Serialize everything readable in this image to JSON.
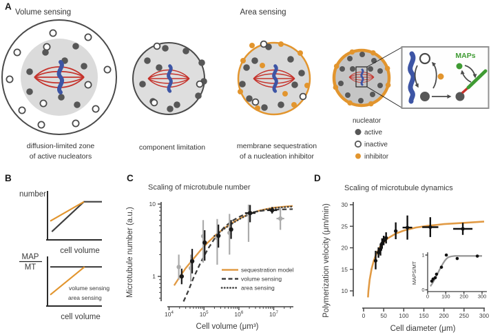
{
  "colors": {
    "orange": "#E2952E",
    "orange_curve": "#E19A44",
    "dark_gray": "#3F3F3F",
    "data_gray": "#ABABAB",
    "red_spindle": "#C5322B",
    "blue_chromosome": "#3D55A5",
    "green_maps": "#3F9B33",
    "nucleator_dot": "#575757"
  },
  "panel_a": {
    "label": "A",
    "header_volume": "Volume sensing",
    "header_area": "Area sensing",
    "caption1_line1": "diffusion-limited zone",
    "caption1_line2": "of active nucleators",
    "caption2": "component limitation",
    "caption3_line1": "membrane sequestration",
    "caption3_line2": "of a nucleation inhibitor",
    "inset_maps_label": "MAPs",
    "legend": {
      "title": "nucleator",
      "active": "active",
      "inactive": "inactive",
      "inhibitor": "inhibitor"
    }
  },
  "panel_b": {
    "label": "B"
  },
  "panel_c": {
    "label": "C"
  },
  "panel_d": {
    "label": "D"
  },
  "chart_data": [
    {
      "id": "panel-b-top-schematic",
      "type": "line",
      "xlabel": "cell volume",
      "ylabel": "number",
      "axes": "schematic, no ticks, normalized 0-1",
      "curves": [
        {
          "name": "volume sensing",
          "color": "#3F3F3F",
          "width": 2.2,
          "points": [
            [
              0.08,
              0.17
            ],
            [
              0.67,
              0.79
            ],
            [
              1.0,
              0.79
            ]
          ]
        },
        {
          "name": "area sensing",
          "color": "#E2952E",
          "width": 2.2,
          "points": [
            [
              0.05,
              0.39
            ],
            [
              0.67,
              0.79
            ]
          ]
        }
      ]
    },
    {
      "id": "panel-b-bottom-schematic",
      "type": "line",
      "xlabel": "cell volume",
      "ylabel_numerator": "MAP",
      "ylabel_denominator": "MT",
      "legend": [
        "volume sensing",
        "area sensing"
      ],
      "axes": "schematic, no ticks, normalized 0-1",
      "curves": [
        {
          "name": "volume sensing",
          "color": "#3F3F3F",
          "width": 2.2,
          "points": [
            [
              0.05,
              0.8
            ],
            [
              1.0,
              0.8
            ]
          ]
        },
        {
          "name": "area sensing",
          "color": "#E2952E",
          "width": 2.2,
          "points": [
            [
              0.05,
              0.23
            ],
            [
              0.68,
              0.8
            ]
          ]
        }
      ]
    },
    {
      "id": "panel-c-microtubule-number",
      "type": "scatter",
      "title": "Scaling of microtubule number",
      "xlabel": "Cell volume (μm³)",
      "ylabel": "Microtubule number (a.u.)",
      "xscale": "log",
      "yscale": "log",
      "xlim": [
        10000,
        35000000
      ],
      "ylim": [
        0.45,
        10.5
      ],
      "legend": [
        "sequestration model",
        "volume sensing",
        "area sensing"
      ],
      "legend_position": "lower right",
      "x_ticks": [
        {
          "v": 10000,
          "label": "10",
          "exp": "4"
        },
        {
          "v": 100000,
          "label": "10",
          "exp": "5"
        },
        {
          "v": 1000000,
          "label": "10",
          "exp": "6"
        },
        {
          "v": 10000000,
          "label": "10",
          "exp": "7"
        }
      ],
      "y_ticks": [
        {
          "v": 1,
          "label": "1"
        },
        {
          "v": 10,
          "label": "10"
        }
      ],
      "curves": [
        {
          "name": "sequestration model",
          "color": "#E19A44",
          "width": 2.4,
          "points": [
            [
              14000,
              0.75
            ],
            [
              20000,
              0.98
            ],
            [
              30000,
              1.3
            ],
            [
              50000,
              1.75
            ],
            [
              80000,
              2.3
            ],
            [
              130000,
              2.95
            ],
            [
              220000,
              3.75
            ],
            [
              400000,
              4.7
            ],
            [
              700000,
              5.6
            ],
            [
              1200000,
              6.5
            ],
            [
              2000000,
              7.3
            ],
            [
              3500000,
              8.0
            ],
            [
              6000000,
              8.5
            ],
            [
              10000000,
              8.9
            ],
            [
              20000000,
              9.2
            ],
            [
              35000000,
              9.4
            ]
          ]
        },
        {
          "name": "volume sensing",
          "color": "#3F3F3F",
          "width": 2.3,
          "dash": "6.5,4.2",
          "points": [
            [
              26000,
              0.45
            ],
            [
              35000,
              0.62
            ],
            [
              50000,
              0.95
            ],
            [
              80000,
              1.55
            ],
            [
              130000,
              2.4
            ],
            [
              220000,
              3.55
            ],
            [
              400000,
              4.9
            ],
            [
              700000,
              6.0
            ],
            [
              1200000,
              6.9
            ],
            [
              2000000,
              7.5
            ],
            [
              3500000,
              7.95
            ],
            [
              6000000,
              8.2
            ],
            [
              10000000,
              8.35
            ],
            [
              20000000,
              8.45
            ],
            [
              35000000,
              8.5
            ]
          ]
        },
        {
          "name": "area sensing",
          "color": "#3F3F3F",
          "width": 2.5,
          "dash": "0.3,4.2",
          "cap": "round",
          "points": [
            [
              200000,
              3.62
            ],
            [
              400000,
              4.62
            ],
            [
              700000,
              5.52
            ],
            [
              1200000,
              6.42
            ],
            [
              2000000,
              7.22
            ],
            [
              3500000,
              7.92
            ],
            [
              6000000,
              8.42
            ],
            [
              10000000,
              8.78
            ],
            [
              20000000,
              9.05
            ],
            [
              35000000,
              9.25
            ]
          ]
        }
      ],
      "series": [
        {
          "name": "data gray",
          "color": "#ABABAB",
          "r": 3.2,
          "lw": 2.2,
          "x": [
            19000,
            42000,
            95000,
            240000,
            540000,
            1900000,
            15500000
          ],
          "y": [
            1.35,
            1.3,
            3.6,
            3.4,
            4.0,
            7.2,
            6.3
          ],
          "ylo": [
            0.9,
            0.85,
            1.55,
            1.45,
            2.0,
            3.0,
            4.4
          ],
          "yhi": [
            2.0,
            2.0,
            6.0,
            6.2,
            7.3,
            9.8,
            9.0
          ],
          "xlo": [
            null,
            null,
            null,
            null,
            null,
            null,
            12000000
          ],
          "xhi": [
            null,
            null,
            null,
            null,
            null,
            null,
            20000000
          ]
        },
        {
          "name": "data black",
          "color": "#1A1A1A",
          "r": 3.2,
          "lw": 2.2,
          "x": [
            23000,
            46000,
            105000,
            260000,
            600000,
            2100000,
            9000000
          ],
          "y": [
            1.0,
            1.62,
            2.93,
            3.65,
            4.45,
            7.5,
            8.2
          ],
          "ylo": [
            0.78,
            1.1,
            1.65,
            2.5,
            3.3,
            5.6,
            7.4
          ],
          "yhi": [
            1.28,
            2.4,
            4.35,
            5.2,
            6.0,
            9.7,
            9.1
          ],
          "xlo": [
            null,
            null,
            null,
            null,
            null,
            1500000,
            6500000
          ],
          "xhi": [
            null,
            null,
            null,
            null,
            null,
            3000000,
            12500000
          ]
        }
      ]
    },
    {
      "id": "panel-d-polymerization-velocity",
      "type": "scatter",
      "title": "Scaling of microtubule dynamics",
      "xlabel": "Cell diameter (μm)",
      "ylabel": "Polymerization velocity (μm/min)",
      "xscale": "linear",
      "yscale": "linear",
      "xlim": [
        0,
        300
      ],
      "ylim": [
        10,
        30
      ],
      "x_ticks": [
        {
          "v": 0,
          "label": "0"
        },
        {
          "v": 50,
          "label": "50"
        },
        {
          "v": 100,
          "label": "100"
        },
        {
          "v": 150,
          "label": "150"
        },
        {
          "v": 200,
          "label": "200"
        },
        {
          "v": 250,
          "label": "250"
        },
        {
          "v": 300,
          "label": "300"
        }
      ],
      "y_ticks": [
        {
          "v": 10,
          "label": "10"
        },
        {
          "v": 15,
          "label": "15"
        },
        {
          "v": 20,
          "label": "20"
        },
        {
          "v": 25,
          "label": "25"
        },
        {
          "v": 30,
          "label": "30"
        }
      ],
      "curves": [
        {
          "name": "sequestration model",
          "color": "#E19A44",
          "width": 2.6,
          "points": [
            [
              11,
              8.5
            ],
            [
              12,
              10.0
            ],
            [
              15,
              12.6
            ],
            [
              20,
              15.2
            ],
            [
              25,
              16.9
            ],
            [
              30,
              18.2
            ],
            [
              40,
              20.1
            ],
            [
              50,
              21.3
            ],
            [
              60,
              22.2
            ],
            [
              80,
              23.3
            ],
            [
              100,
              24.0
            ],
            [
              130,
              24.7
            ],
            [
              160,
              25.1
            ],
            [
              200,
              25.5
            ],
            [
              250,
              25.8
            ],
            [
              300,
              26.1
            ]
          ]
        }
      ],
      "series": [
        {
          "name": "data black",
          "color": "#111111",
          "r": 2.6,
          "lw": 2.4,
          "x": [
            30,
            37,
            42,
            46,
            50,
            56,
            80,
            109,
            166,
            247
          ],
          "y": [
            17.0,
            18.9,
            19.6,
            21.0,
            21.7,
            22.3,
            23.9,
            24.7,
            24.8,
            24.4
          ],
          "ylo": [
            15.0,
            17.7,
            18.2,
            19.8,
            20.6,
            21.0,
            22.0,
            21.9,
            22.5,
            23.0
          ],
          "yhi": [
            19.3,
            20.1,
            21.0,
            22.2,
            22.8,
            23.6,
            25.9,
            27.5,
            27.1,
            25.8
          ],
          "xlo": [
            null,
            null,
            null,
            null,
            null,
            null,
            null,
            97,
            146,
            223
          ],
          "xhi": [
            null,
            null,
            null,
            null,
            null,
            null,
            null,
            121,
            186,
            271
          ]
        }
      ]
    },
    {
      "id": "panel-d-inset-maps-per-mt",
      "type": "scatter",
      "xlabel": "",
      "ylabel": "MAPS/MT",
      "xscale": "linear",
      "yscale": "linear",
      "xlim": [
        0,
        300
      ],
      "ylim": [
        0,
        1.1
      ],
      "x_ticks": [
        {
          "v": 0,
          "label": "0"
        },
        {
          "v": 100,
          "label": "100"
        },
        {
          "v": 200,
          "label": "200"
        },
        {
          "v": 300,
          "label": "300"
        }
      ],
      "y_ticks": [
        {
          "v": 0,
          "label": "0"
        },
        {
          "v": 1,
          "label": "1"
        }
      ],
      "curves": [
        {
          "name": "model fit",
          "color": "#999999",
          "width": 2.3,
          "points": [
            [
              15,
              0.1
            ],
            [
              25,
              0.18
            ],
            [
              35,
              0.27
            ],
            [
              45,
              0.37
            ],
            [
              55,
              0.47
            ],
            [
              65,
              0.57
            ],
            [
              75,
              0.67
            ],
            [
              85,
              0.76
            ],
            [
              95,
              0.84
            ],
            [
              105,
              0.9
            ],
            [
              115,
              0.94
            ],
            [
              130,
              0.96
            ],
            [
              150,
              0.975
            ],
            [
              200,
              0.975
            ],
            [
              300,
              0.975
            ]
          ]
        },
        {
          "name": "data points placeholder",
          "color": "none",
          "width": 0,
          "points": []
        }
      ],
      "series": [
        {
          "name": "data black",
          "color": "#111111",
          "r": 2.3,
          "lw": 0,
          "x": [
            23,
            30,
            42,
            49,
            76,
            103,
            163,
            274
          ],
          "y": [
            0.25,
            0.31,
            0.35,
            0.45,
            0.65,
            1.0,
            0.9,
            0.97
          ]
        }
      ]
    }
  ]
}
